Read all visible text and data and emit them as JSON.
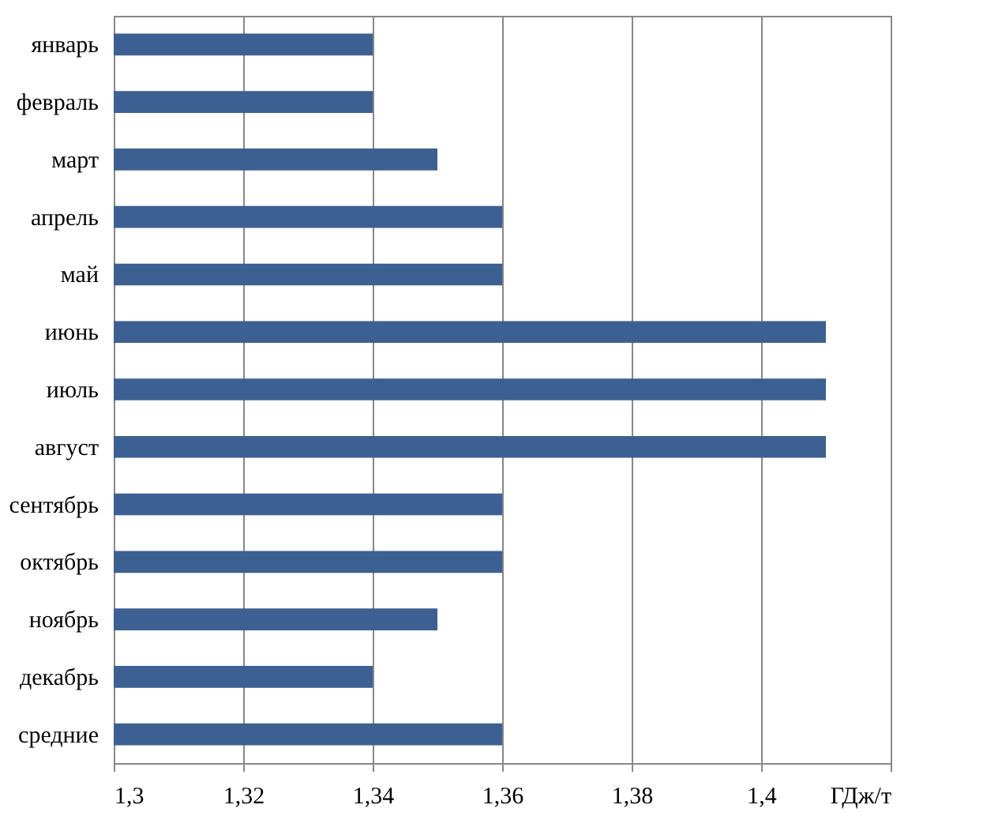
{
  "chart_data": {
    "type": "bar",
    "orientation": "horizontal",
    "categories": [
      "январь",
      "февраль",
      "март",
      "апрель",
      "май",
      "июнь",
      "июль",
      "август",
      "сентябрь",
      "октябрь",
      "ноябрь",
      "декабрь",
      "средние"
    ],
    "values": [
      1.34,
      1.34,
      1.35,
      1.36,
      1.36,
      1.41,
      1.41,
      1.41,
      1.36,
      1.36,
      1.35,
      1.34,
      1.36
    ],
    "color": "#3b6091",
    "xlim": [
      1.3,
      1.42
    ],
    "xticks": [
      {
        "value": 1.3,
        "label": "1,3"
      },
      {
        "value": 1.32,
        "label": "1,32"
      },
      {
        "value": 1.34,
        "label": "1,34"
      },
      {
        "value": 1.36,
        "label": "1,36"
      },
      {
        "value": 1.38,
        "label": "1,38"
      },
      {
        "value": 1.4,
        "label": "1,4"
      },
      {
        "value": 1.42,
        "label": "ГДж/т"
      }
    ],
    "grid": "x"
  }
}
